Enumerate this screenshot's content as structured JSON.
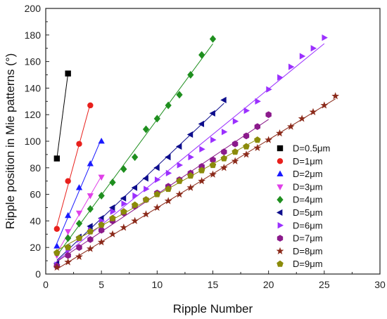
{
  "chart_data": {
    "type": "scatter",
    "title": "",
    "xlabel": "Ripple Number",
    "ylabel": "Ripple position in Mie patterns (°)",
    "xlim": [
      0,
      30
    ],
    "ylim": [
      0,
      200
    ],
    "xticks": [
      0,
      5,
      10,
      15,
      20,
      25,
      30
    ],
    "yticks": [
      0,
      20,
      40,
      60,
      80,
      100,
      120,
      140,
      160,
      180,
      200
    ],
    "grid": false,
    "legend_position": "bottom-right",
    "series": [
      {
        "name": "D=0.5μm",
        "marker": "square",
        "color": "#000000",
        "x": [
          1,
          2
        ],
        "y": [
          87,
          151
        ]
      },
      {
        "name": "D=1μm",
        "marker": "circle",
        "color": "#e8201c",
        "x": [
          1,
          2,
          3,
          4
        ],
        "y": [
          34,
          70,
          98,
          127
        ]
      },
      {
        "name": "D=2μm",
        "marker": "triangle-up",
        "color": "#1a1aff",
        "x": [
          1,
          2,
          3,
          4,
          5
        ],
        "y": [
          21,
          44,
          65,
          83,
          100
        ]
      },
      {
        "name": "D=3μm",
        "marker": "triangle-down",
        "color": "#e040e8",
        "x": [
          1,
          2,
          3,
          4,
          5
        ],
        "y": [
          14,
          32,
          46,
          59,
          73
        ]
      },
      {
        "name": "D=4μm",
        "marker": "diamond",
        "color": "#1f8f1f",
        "x": [
          1,
          2,
          3,
          4,
          5,
          6,
          7,
          8,
          9,
          10,
          11,
          12,
          13,
          14,
          15
        ],
        "y": [
          16,
          27,
          38,
          49,
          59,
          69,
          79,
          88,
          109,
          117,
          127,
          135,
          150,
          165,
          177
        ]
      },
      {
        "name": "D=5μm",
        "marker": "triangle-left",
        "color": "#0d0d8c",
        "x": [
          1,
          2,
          3,
          4,
          5,
          6,
          7,
          8,
          9,
          10,
          11,
          12,
          13,
          14,
          15,
          16
        ],
        "y": [
          8,
          20,
          28,
          36,
          42,
          50,
          57,
          65,
          72,
          80,
          88,
          96,
          105,
          113,
          121,
          131
        ]
      },
      {
        "name": "D=6μm",
        "marker": "triangle-right",
        "color": "#9b30ff",
        "x": [
          1,
          2,
          3,
          4,
          5,
          6,
          7,
          8,
          9,
          10,
          11,
          12,
          13,
          14,
          15,
          16,
          17,
          18,
          19,
          20,
          21,
          22,
          23,
          24,
          25
        ],
        "y": [
          7,
          18,
          26,
          33,
          40,
          47,
          53,
          59,
          64,
          71,
          76,
          82,
          88,
          94,
          101,
          107,
          115,
          123,
          130,
          139,
          148,
          156,
          164,
          170,
          178
        ]
      },
      {
        "name": "D=7μm",
        "marker": "hexagon",
        "color": "#8b1a8b",
        "x": [
          1,
          2,
          3,
          4,
          5,
          6,
          7,
          8,
          9,
          10,
          11,
          12,
          13,
          14,
          15,
          16,
          17,
          18,
          19,
          20
        ],
        "y": [
          6,
          14,
          20,
          26,
          33,
          40,
          46,
          51,
          56,
          61,
          66,
          71,
          76,
          81,
          86,
          92,
          98,
          104,
          111,
          120
        ]
      },
      {
        "name": "D=8μm",
        "marker": "star",
        "color": "#8b2a1a",
        "x": [
          1,
          2,
          3,
          4,
          5,
          6,
          7,
          8,
          9,
          10,
          11,
          12,
          13,
          14,
          15,
          16,
          17,
          18,
          19,
          20,
          21,
          22,
          23,
          24,
          25,
          26
        ],
        "y": [
          5,
          9,
          13,
          19,
          24,
          30,
          35,
          40,
          45,
          50,
          55,
          60,
          65,
          70,
          75,
          80,
          85,
          90,
          95,
          101,
          106,
          111,
          117,
          122,
          127,
          134
        ]
      },
      {
        "name": "D=9μm",
        "marker": "pentagon",
        "color": "#8b8b0a",
        "x": [
          1,
          2,
          3,
          4,
          5,
          6,
          7,
          8,
          9,
          10,
          11,
          12,
          13,
          14,
          15,
          16,
          17,
          18,
          19
        ],
        "y": [
          16,
          20,
          27,
          32,
          37,
          42,
          47,
          52,
          56,
          60,
          64,
          70,
          74,
          78,
          82,
          87,
          92,
          96,
          101
        ]
      }
    ]
  }
}
